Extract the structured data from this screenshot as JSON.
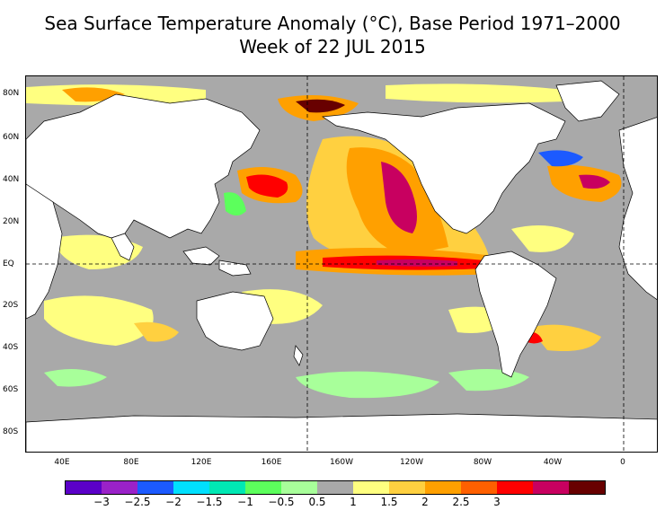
{
  "title": {
    "line1": "Sea Surface Temperature Anomaly (°C), Base Period 1971–2000",
    "line2": "Week of 22 JUL 2015"
  },
  "axes": {
    "lat_labels": [
      "80N",
      "60N",
      "40N",
      "20N",
      "EQ",
      "20S",
      "40S",
      "60S",
      "80S"
    ],
    "lon_labels": [
      "40E",
      "80E",
      "120E",
      "160E",
      "160W",
      "120W",
      "80W",
      "40W",
      "0"
    ]
  },
  "colorbar": {
    "colors": [
      "#5b00c8",
      "#9a22c8",
      "#1c5aff",
      "#00e0ff",
      "#00e8b4",
      "#5cff5c",
      "#a8ff9a",
      "#a9a9a9",
      "#ffff80",
      "#ffd040",
      "#ffa000",
      "#ff6000",
      "#ff0000",
      "#c80060",
      "#680000"
    ],
    "labels": [
      "−3",
      "−2.5",
      "−2",
      "−1.5",
      "−1",
      "−0.5",
      "0.5",
      "1",
      "1.5",
      "2",
      "2.5",
      "3"
    ]
  }
}
